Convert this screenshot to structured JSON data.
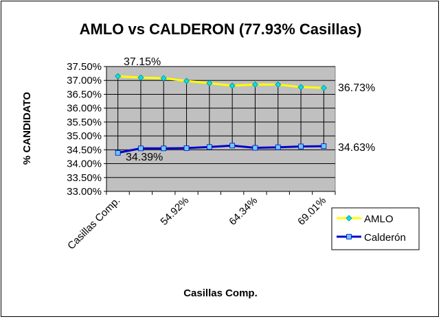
{
  "chart_data": {
    "type": "line",
    "title": "AMLO  vs  CALDERON (77.93% Casillas)",
    "xlabel": "Casillas Comp.",
    "ylabel": "% CANDIDATO",
    "ylim": [
      33.0,
      37.5
    ],
    "ytick_step": 0.5,
    "yticks": [
      "37.50%",
      "37.00%",
      "36.50%",
      "36.00%",
      "35.50%",
      "35.00%",
      "34.50%",
      "34.00%",
      "33.50%",
      "33.00%"
    ],
    "xtick_labels": [
      "Casillas Comp.",
      "54.92%",
      "64.34%",
      "69.01%"
    ],
    "grid": true,
    "legend_position": "bottom-right",
    "plot_background": "#c0c0c0",
    "series": [
      {
        "name": "AMLO",
        "line_color": "#ffff00",
        "marker_color": "#00e5e5",
        "marker": "diamond",
        "values": [
          37.15,
          37.1,
          37.08,
          36.98,
          36.9,
          36.81,
          36.85,
          36.85,
          36.76,
          36.73
        ]
      },
      {
        "name": "Calderón",
        "line_color": "#0000cc",
        "marker_color": "#66ccff",
        "marker": "square",
        "values": [
          34.39,
          34.55,
          34.55,
          34.56,
          34.6,
          34.65,
          34.57,
          34.59,
          34.62,
          34.63
        ]
      }
    ],
    "annotations": [
      "37.15%",
      "36.73%",
      "34.39%",
      "34.63%"
    ]
  }
}
